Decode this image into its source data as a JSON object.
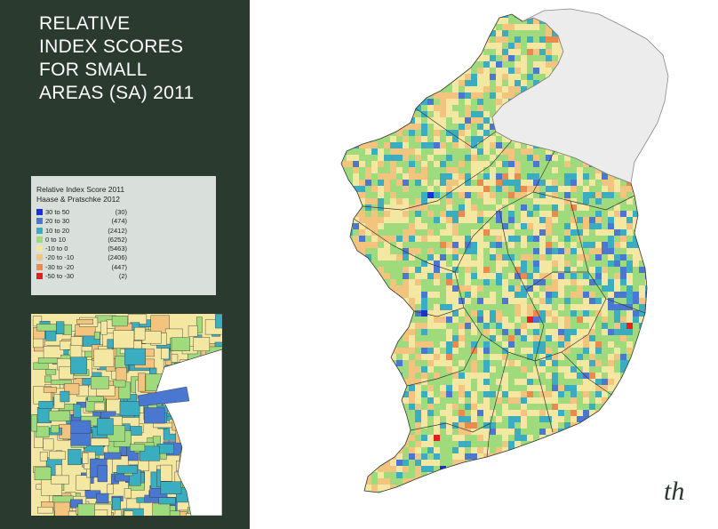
{
  "title": {
    "lines": [
      "RELATIVE",
      "INDEX SCORES",
      "FOR SMALL",
      "AREAS (SA) 2011"
    ]
  },
  "legend": {
    "title": "Relative Index Score 2011",
    "subtitle": "Haase & Pratschke 2012",
    "rows": [
      {
        "range": "30 to 50",
        "count": "(30)",
        "color": "#1c2fd8"
      },
      {
        "range": "20 to 30",
        "count": "(474)",
        "color": "#4a78d0"
      },
      {
        "range": "10 to 20",
        "count": "(2412)",
        "color": "#3aaec0"
      },
      {
        "range": "0 to 10",
        "count": "(6252)",
        "color": "#9fdb7c"
      },
      {
        "range": "-10 to 0",
        "count": "(5463)",
        "color": "#f4e7a2"
      },
      {
        "range": "-20 to -10",
        "count": "(2406)",
        "color": "#f3c47d"
      },
      {
        "range": "-30 to -20",
        "count": "(447)",
        "color": "#ea8a4c"
      },
      {
        "range": "-50 to -30",
        "count": "(2)",
        "color": "#e21f1f"
      }
    ]
  },
  "colors": {
    "sidebar": "#2b3a2f",
    "northern_ireland": "#ececec",
    "sea": "#ffffff"
  },
  "logo": {
    "text": "th"
  }
}
